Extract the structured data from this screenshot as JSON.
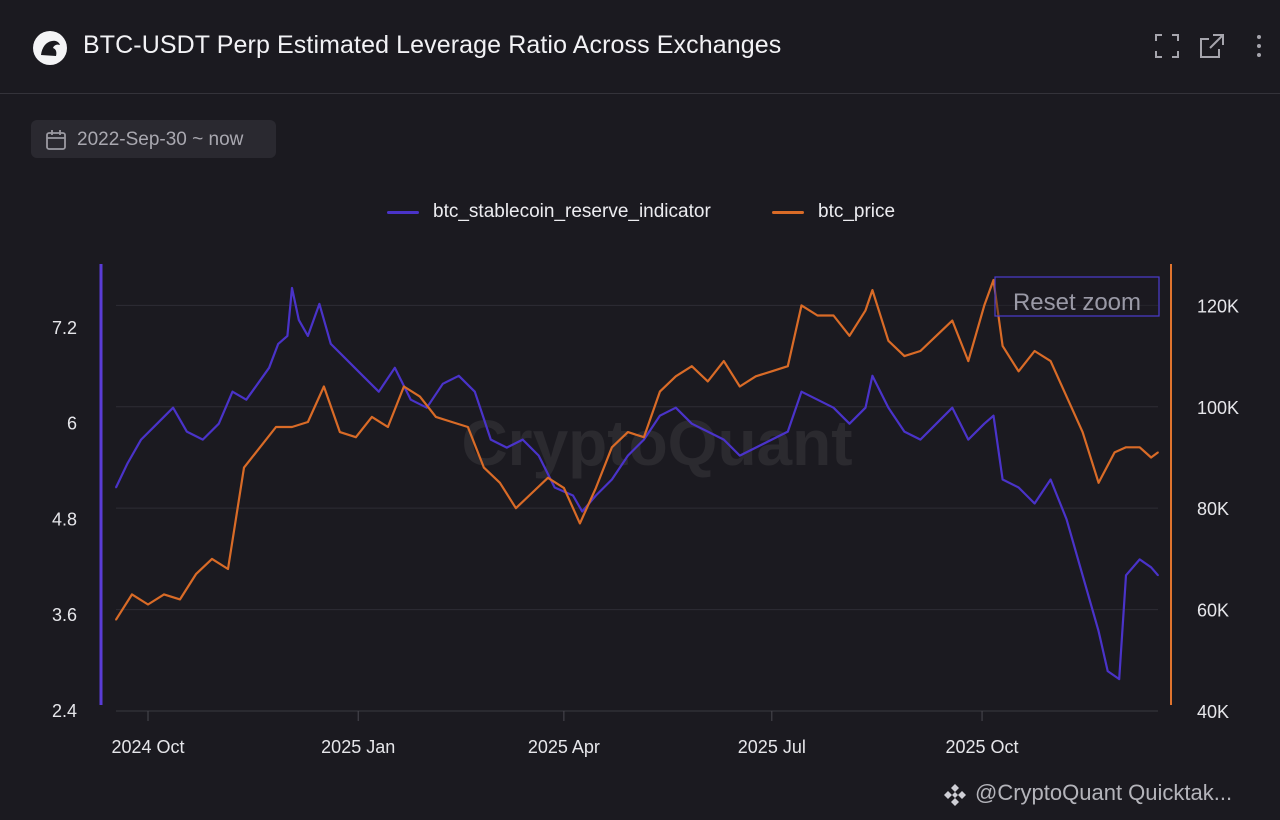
{
  "header": {
    "title": "BTC-USDT Perp Estimated Leverage Ratio Across Exchanges",
    "icons": [
      "fullscreen-icon",
      "open-external-icon",
      "more-vertical-icon"
    ]
  },
  "date_range": {
    "label": "2022-Sep-30 ~ now",
    "icon": "calendar-icon"
  },
  "chart_data": {
    "type": "line",
    "title": "BTC-USDT Perp Estimated Leverage Ratio Across Exchanges",
    "watermark": "CryptoQuant",
    "reset_zoom_label": "Reset zoom",
    "x_range": [
      "2024-09-17",
      "2025-12-17"
    ],
    "x_ticks": [
      {
        "label": "2024 Oct",
        "date": "2024-10-01"
      },
      {
        "label": "2025 Jan",
        "date": "2025-01-01"
      },
      {
        "label": "2025 Apr",
        "date": "2025-04-01"
      },
      {
        "label": "2025 Jul",
        "date": "2025-07-01"
      },
      {
        "label": "2025 Oct",
        "date": "2025-10-01"
      }
    ],
    "y_left": {
      "min": 2.4,
      "max": 7.8,
      "ticks": [
        "2.4",
        "3.6",
        "4.8",
        "6",
        "7.2"
      ],
      "color": "#5a3cd6"
    },
    "y_right": {
      "min": 40000,
      "max": 125000,
      "ticks": [
        "40K",
        "60K",
        "80K",
        "100K",
        "120K"
      ],
      "color": "#e0742e"
    },
    "series": [
      {
        "name": "btc_stablecoin_reserve_indicator",
        "axis": "left",
        "color": "#4a33c9",
        "points": [
          [
            "2024-09-17",
            5.2
          ],
          [
            "2024-09-22",
            5.5
          ],
          [
            "2024-09-28",
            5.8
          ],
          [
            "2024-10-05",
            6.0
          ],
          [
            "2024-10-12",
            6.2
          ],
          [
            "2024-10-18",
            5.9
          ],
          [
            "2024-10-25",
            5.8
          ],
          [
            "2024-11-01",
            6.0
          ],
          [
            "2024-11-07",
            6.4
          ],
          [
            "2024-11-13",
            6.3
          ],
          [
            "2024-11-18",
            6.5
          ],
          [
            "2024-11-23",
            6.7
          ],
          [
            "2024-11-27",
            7.0
          ],
          [
            "2024-12-01",
            7.1
          ],
          [
            "2024-12-03",
            7.7
          ],
          [
            "2024-12-06",
            7.3
          ],
          [
            "2024-12-10",
            7.1
          ],
          [
            "2024-12-15",
            7.5
          ],
          [
            "2024-12-20",
            7.0
          ],
          [
            "2024-12-27",
            6.8
          ],
          [
            "2025-01-03",
            6.6
          ],
          [
            "2025-01-10",
            6.4
          ],
          [
            "2025-01-17",
            6.7
          ],
          [
            "2025-01-24",
            6.3
          ],
          [
            "2025-01-31",
            6.2
          ],
          [
            "2025-02-07",
            6.5
          ],
          [
            "2025-02-14",
            6.6
          ],
          [
            "2025-02-21",
            6.4
          ],
          [
            "2025-02-28",
            5.8
          ],
          [
            "2025-03-07",
            5.7
          ],
          [
            "2025-03-14",
            5.8
          ],
          [
            "2025-03-21",
            5.6
          ],
          [
            "2025-03-28",
            5.2
          ],
          [
            "2025-04-05",
            5.1
          ],
          [
            "2025-04-09",
            4.9
          ],
          [
            "2025-04-15",
            5.1
          ],
          [
            "2025-04-22",
            5.3
          ],
          [
            "2025-04-29",
            5.6
          ],
          [
            "2025-05-06",
            5.8
          ],
          [
            "2025-05-13",
            6.1
          ],
          [
            "2025-05-20",
            6.2
          ],
          [
            "2025-05-27",
            6.0
          ],
          [
            "2025-06-03",
            5.9
          ],
          [
            "2025-06-10",
            5.8
          ],
          [
            "2025-06-17",
            5.6
          ],
          [
            "2025-06-24",
            5.7
          ],
          [
            "2025-07-01",
            5.8
          ],
          [
            "2025-07-08",
            5.9
          ],
          [
            "2025-07-14",
            6.4
          ],
          [
            "2025-07-21",
            6.3
          ],
          [
            "2025-07-28",
            6.2
          ],
          [
            "2025-08-04",
            6.0
          ],
          [
            "2025-08-11",
            6.2
          ],
          [
            "2025-08-14",
            6.6
          ],
          [
            "2025-08-21",
            6.2
          ],
          [
            "2025-08-28",
            5.9
          ],
          [
            "2025-09-04",
            5.8
          ],
          [
            "2025-09-11",
            6.0
          ],
          [
            "2025-09-18",
            6.2
          ],
          [
            "2025-09-25",
            5.8
          ],
          [
            "2025-10-02",
            6.0
          ],
          [
            "2025-10-06",
            6.1
          ],
          [
            "2025-10-10",
            5.3
          ],
          [
            "2025-10-17",
            5.2
          ],
          [
            "2025-10-24",
            5.0
          ],
          [
            "2025-10-31",
            5.3
          ],
          [
            "2025-11-07",
            4.8
          ],
          [
            "2025-11-14",
            4.1
          ],
          [
            "2025-11-21",
            3.4
          ],
          [
            "2025-11-25",
            2.9
          ],
          [
            "2025-11-30",
            2.8
          ],
          [
            "2025-12-03",
            4.1
          ],
          [
            "2025-12-09",
            4.3
          ],
          [
            "2025-12-14",
            4.2
          ],
          [
            "2025-12-17",
            4.1
          ]
        ]
      },
      {
        "name": "btc_price",
        "axis": "right",
        "color": "#d96b27",
        "points": [
          [
            "2024-09-17",
            58000
          ],
          [
            "2024-09-24",
            63000
          ],
          [
            "2024-10-01",
            61000
          ],
          [
            "2024-10-08",
            63000
          ],
          [
            "2024-10-15",
            62000
          ],
          [
            "2024-10-22",
            67000
          ],
          [
            "2024-10-29",
            70000
          ],
          [
            "2024-11-05",
            68000
          ],
          [
            "2024-11-12",
            88000
          ],
          [
            "2024-11-19",
            92000
          ],
          [
            "2024-11-26",
            96000
          ],
          [
            "2024-12-03",
            96000
          ],
          [
            "2024-12-10",
            97000
          ],
          [
            "2024-12-17",
            104000
          ],
          [
            "2024-12-24",
            95000
          ],
          [
            "2024-12-31",
            94000
          ],
          [
            "2025-01-07",
            98000
          ],
          [
            "2025-01-14",
            96000
          ],
          [
            "2025-01-21",
            104000
          ],
          [
            "2025-01-28",
            102000
          ],
          [
            "2025-02-04",
            98000
          ],
          [
            "2025-02-11",
            97000
          ],
          [
            "2025-02-18",
            96000
          ],
          [
            "2025-02-25",
            88000
          ],
          [
            "2025-03-04",
            85000
          ],
          [
            "2025-03-11",
            80000
          ],
          [
            "2025-03-18",
            83000
          ],
          [
            "2025-03-25",
            86000
          ],
          [
            "2025-04-01",
            84000
          ],
          [
            "2025-04-08",
            77000
          ],
          [
            "2025-04-15",
            84000
          ],
          [
            "2025-04-22",
            92000
          ],
          [
            "2025-04-29",
            95000
          ],
          [
            "2025-05-06",
            94000
          ],
          [
            "2025-05-13",
            103000
          ],
          [
            "2025-05-20",
            106000
          ],
          [
            "2025-05-27",
            108000
          ],
          [
            "2025-06-03",
            105000
          ],
          [
            "2025-06-10",
            109000
          ],
          [
            "2025-06-17",
            104000
          ],
          [
            "2025-06-24",
            106000
          ],
          [
            "2025-07-01",
            107000
          ],
          [
            "2025-07-08",
            108000
          ],
          [
            "2025-07-14",
            120000
          ],
          [
            "2025-07-21",
            118000
          ],
          [
            "2025-07-28",
            118000
          ],
          [
            "2025-08-04",
            114000
          ],
          [
            "2025-08-11",
            119000
          ],
          [
            "2025-08-14",
            123000
          ],
          [
            "2025-08-21",
            113000
          ],
          [
            "2025-08-28",
            110000
          ],
          [
            "2025-09-04",
            111000
          ],
          [
            "2025-09-11",
            114000
          ],
          [
            "2025-09-18",
            117000
          ],
          [
            "2025-09-25",
            109000
          ],
          [
            "2025-10-02",
            120000
          ],
          [
            "2025-10-06",
            125000
          ],
          [
            "2025-10-10",
            112000
          ],
          [
            "2025-10-17",
            107000
          ],
          [
            "2025-10-24",
            111000
          ],
          [
            "2025-10-31",
            109000
          ],
          [
            "2025-11-07",
            102000
          ],
          [
            "2025-11-14",
            95000
          ],
          [
            "2025-11-21",
            85000
          ],
          [
            "2025-11-28",
            91000
          ],
          [
            "2025-12-03",
            92000
          ],
          [
            "2025-12-09",
            92000
          ],
          [
            "2025-12-14",
            90000
          ],
          [
            "2025-12-17",
            91000
          ]
        ]
      }
    ]
  },
  "footer": {
    "credit": "@CryptoQuant Quicktak..."
  }
}
